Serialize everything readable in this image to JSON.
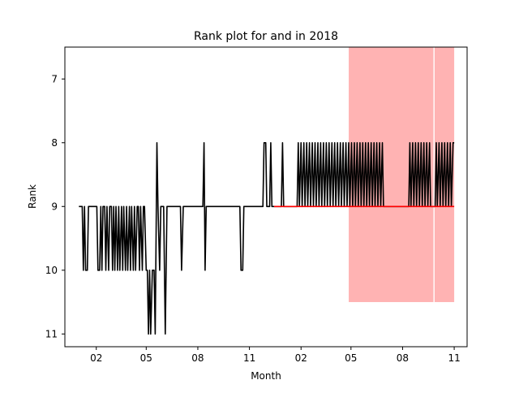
{
  "chart_data": {
    "type": "line",
    "title": "Rank plot for and in 2018",
    "xlabel": "Month",
    "ylabel": "Rank",
    "y_inverted": true,
    "ylim": [
      11.2,
      6.5
    ],
    "y_ticks": [
      7,
      8,
      9,
      10,
      11
    ],
    "x_ticks": [
      {
        "date": "2018-02-01",
        "label": "02"
      },
      {
        "date": "2018-05-01",
        "label": "05"
      },
      {
        "date": "2018-08-01",
        "label": "08"
      },
      {
        "date": "2018-11-01",
        "label": "11"
      },
      {
        "date": "2019-02-01",
        "label": "02"
      },
      {
        "date": "2019-05-01",
        "label": "05"
      },
      {
        "date": "2019-08-01",
        "label": "08"
      },
      {
        "date": "2019-11-01",
        "label": "11"
      }
    ],
    "xlim": [
      "2017-12-07",
      "2019-11-24"
    ],
    "series": [
      {
        "color": "#000000",
        "points": [
          [
            "2018-01-01",
            9
          ],
          [
            "2018-01-07",
            9
          ],
          [
            "2018-01-09",
            10
          ],
          [
            "2018-01-11",
            9
          ],
          [
            "2018-01-13",
            10
          ],
          [
            "2018-01-16",
            10
          ],
          [
            "2018-01-18",
            9
          ],
          [
            "2018-02-02",
            9
          ],
          [
            "2018-02-04",
            10
          ],
          [
            "2018-02-07",
            10
          ],
          [
            "2018-02-09",
            9
          ],
          [
            "2018-02-11",
            10
          ],
          [
            "2018-02-13",
            9
          ],
          [
            "2018-02-16",
            9
          ],
          [
            "2018-02-18",
            10
          ],
          [
            "2018-02-20",
            9
          ],
          [
            "2018-02-23",
            10
          ],
          [
            "2018-02-25",
            9
          ],
          [
            "2018-02-28",
            9
          ],
          [
            "2018-03-02",
            10
          ],
          [
            "2018-03-04",
            9
          ],
          [
            "2018-03-06",
            10
          ],
          [
            "2018-03-08",
            9
          ],
          [
            "2018-03-11",
            10
          ],
          [
            "2018-03-13",
            9
          ],
          [
            "2018-03-15",
            10
          ],
          [
            "2018-03-18",
            9
          ],
          [
            "2018-03-20",
            10
          ],
          [
            "2018-03-22",
            9
          ],
          [
            "2018-03-25",
            10
          ],
          [
            "2018-03-27",
            9
          ],
          [
            "2018-03-29",
            10
          ],
          [
            "2018-04-01",
            9
          ],
          [
            "2018-04-03",
            10
          ],
          [
            "2018-04-05",
            9
          ],
          [
            "2018-04-08",
            10
          ],
          [
            "2018-04-10",
            9
          ],
          [
            "2018-04-12",
            10
          ],
          [
            "2018-04-15",
            9
          ],
          [
            "2018-04-17",
            9
          ],
          [
            "2018-04-19",
            10
          ],
          [
            "2018-04-21",
            9
          ],
          [
            "2018-04-24",
            10
          ],
          [
            "2018-04-26",
            9
          ],
          [
            "2018-04-28",
            9
          ],
          [
            "2018-05-01",
            10
          ],
          [
            "2018-05-03",
            10
          ],
          [
            "2018-05-05",
            11
          ],
          [
            "2018-05-07",
            10
          ],
          [
            "2018-05-09",
            11
          ],
          [
            "2018-05-12",
            10
          ],
          [
            "2018-05-15",
            10
          ],
          [
            "2018-05-17",
            11
          ],
          [
            "2018-05-20",
            8
          ],
          [
            "2018-05-22",
            9
          ],
          [
            "2018-05-25",
            10
          ],
          [
            "2018-05-27",
            9
          ],
          [
            "2018-06-01",
            9
          ],
          [
            "2018-06-04",
            11
          ],
          [
            "2018-06-07",
            9
          ],
          [
            "2018-07-01",
            9
          ],
          [
            "2018-07-03",
            10
          ],
          [
            "2018-07-06",
            9
          ],
          [
            "2018-08-10",
            9
          ],
          [
            "2018-08-12",
            8
          ],
          [
            "2018-08-14",
            10
          ],
          [
            "2018-08-16",
            9
          ],
          [
            "2018-10-15",
            9
          ],
          [
            "2018-10-17",
            10
          ],
          [
            "2018-10-20",
            10
          ],
          [
            "2018-10-22",
            9
          ],
          [
            "2018-11-25",
            9
          ],
          [
            "2018-11-27",
            8
          ],
          [
            "2018-11-30",
            8
          ],
          [
            "2018-12-02",
            9
          ],
          [
            "2018-12-07",
            9
          ],
          [
            "2018-12-09",
            8
          ],
          [
            "2018-12-11",
            9
          ],
          [
            "2018-12-28",
            9
          ],
          [
            "2018-12-30",
            8
          ],
          [
            "2019-01-01",
            9
          ],
          [
            "2019-01-25",
            9
          ],
          [
            "2019-01-27",
            8
          ],
          [
            "2019-01-29",
            9
          ],
          [
            "2019-02-01",
            8
          ],
          [
            "2019-02-03",
            9
          ],
          [
            "2019-02-06",
            8
          ],
          [
            "2019-02-08",
            9
          ],
          [
            "2019-02-11",
            8
          ],
          [
            "2019-02-13",
            9
          ],
          [
            "2019-02-16",
            8
          ],
          [
            "2019-02-18",
            9
          ],
          [
            "2019-02-21",
            8
          ],
          [
            "2019-02-23",
            9
          ],
          [
            "2019-02-26",
            8
          ],
          [
            "2019-02-28",
            9
          ],
          [
            "2019-03-03",
            8
          ],
          [
            "2019-03-05",
            9
          ],
          [
            "2019-03-08",
            8
          ],
          [
            "2019-03-10",
            9
          ],
          [
            "2019-03-13",
            8
          ],
          [
            "2019-03-15",
            9
          ],
          [
            "2019-03-18",
            8
          ],
          [
            "2019-03-20",
            9
          ],
          [
            "2019-03-23",
            8
          ],
          [
            "2019-03-25",
            9
          ],
          [
            "2019-03-28",
            8
          ],
          [
            "2019-03-30",
            9
          ],
          [
            "2019-04-02",
            8
          ],
          [
            "2019-04-04",
            9
          ],
          [
            "2019-04-07",
            8
          ],
          [
            "2019-04-09",
            9
          ],
          [
            "2019-04-12",
            8
          ],
          [
            "2019-04-14",
            9
          ],
          [
            "2019-04-17",
            8
          ],
          [
            "2019-04-19",
            9
          ],
          [
            "2019-04-22",
            8
          ],
          [
            "2019-04-24",
            9
          ],
          [
            "2019-04-27",
            8
          ],
          [
            "2019-04-29",
            9
          ],
          [
            "2019-05-02",
            8
          ],
          [
            "2019-05-04",
            9
          ],
          [
            "2019-05-07",
            8
          ],
          [
            "2019-05-09",
            9
          ],
          [
            "2019-05-12",
            8
          ],
          [
            "2019-05-14",
            9
          ],
          [
            "2019-05-17",
            8
          ],
          [
            "2019-05-19",
            9
          ],
          [
            "2019-05-22",
            8
          ],
          [
            "2019-05-24",
            9
          ],
          [
            "2019-05-27",
            8
          ],
          [
            "2019-05-29",
            9
          ],
          [
            "2019-06-01",
            8
          ],
          [
            "2019-06-03",
            9
          ],
          [
            "2019-06-06",
            8
          ],
          [
            "2019-06-08",
            9
          ],
          [
            "2019-06-11",
            8
          ],
          [
            "2019-06-13",
            9
          ],
          [
            "2019-06-16",
            8
          ],
          [
            "2019-06-18",
            9
          ],
          [
            "2019-06-21",
            8
          ],
          [
            "2019-06-23",
            9
          ],
          [
            "2019-06-26",
            8
          ],
          [
            "2019-06-28",
            9
          ],
          [
            "2019-07-01",
            9
          ],
          [
            "2019-08-12",
            9
          ],
          [
            "2019-08-14",
            8
          ],
          [
            "2019-08-16",
            9
          ],
          [
            "2019-08-19",
            8
          ],
          [
            "2019-08-21",
            9
          ],
          [
            "2019-08-24",
            8
          ],
          [
            "2019-08-26",
            9
          ],
          [
            "2019-08-29",
            8
          ],
          [
            "2019-08-31",
            9
          ],
          [
            "2019-09-03",
            8
          ],
          [
            "2019-09-05",
            9
          ],
          [
            "2019-09-08",
            8
          ],
          [
            "2019-09-10",
            9
          ],
          [
            "2019-09-13",
            8
          ],
          [
            "2019-09-15",
            9
          ],
          [
            "2019-09-18",
            8
          ],
          [
            "2019-09-20",
            9
          ],
          [
            "2019-09-28",
            9
          ],
          [
            "2019-09-30",
            8
          ],
          [
            "2019-10-02",
            9
          ],
          [
            "2019-10-05",
            8
          ],
          [
            "2019-10-07",
            9
          ],
          [
            "2019-10-10",
            8
          ],
          [
            "2019-10-12",
            9
          ],
          [
            "2019-10-15",
            8
          ],
          [
            "2019-10-17",
            9
          ],
          [
            "2019-10-20",
            8
          ],
          [
            "2019-10-22",
            9
          ],
          [
            "2019-10-25",
            8
          ],
          [
            "2019-10-27",
            9
          ],
          [
            "2019-10-30",
            8
          ],
          [
            "2019-11-01",
            8
          ]
        ]
      },
      {
        "color": "#ff0000",
        "points": [
          [
            "2018-12-15",
            9
          ],
          [
            "2019-11-01",
            9
          ]
        ]
      }
    ],
    "shaded_regions": [
      {
        "color": "#ffb3b3",
        "x_start": "2019-04-27",
        "x_end": "2019-09-25",
        "y_top": 6.5,
        "y_bottom": 10.5
      },
      {
        "color": "#ffb3b3",
        "x_start": "2019-09-27",
        "x_end": "2019-11-01",
        "y_top": 6.5,
        "y_bottom": 10.5
      }
    ]
  }
}
